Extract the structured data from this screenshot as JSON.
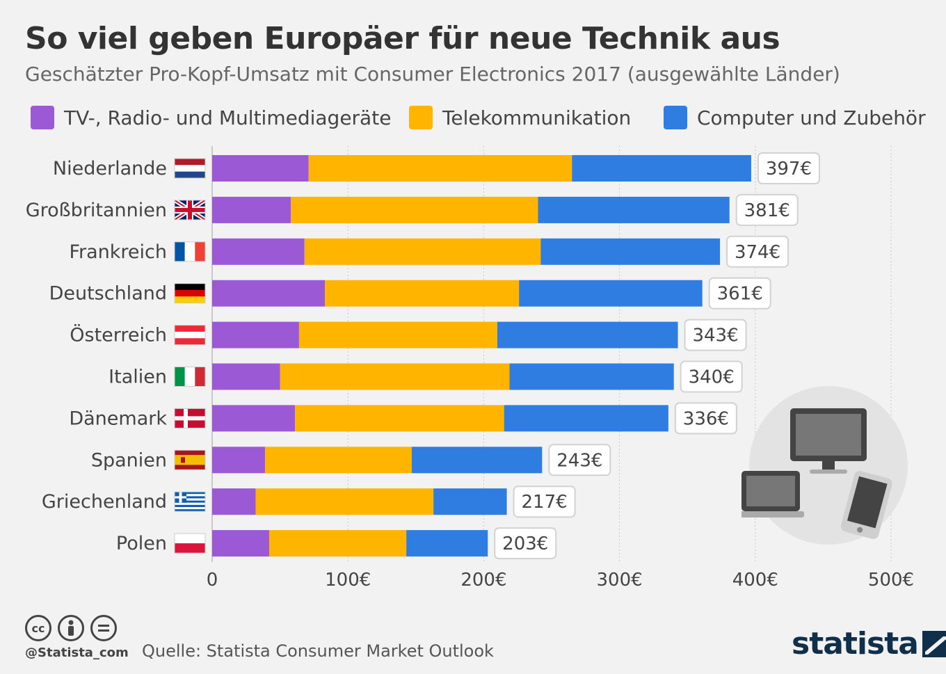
{
  "title": "So viel geben Europäer für neue Technik aus",
  "subtitle": "Geschätzter Pro-Kopf-Umsatz mit Consumer Electronics 2017 (ausgewählte Länder)",
  "footer": {
    "handle": "@Statista_com",
    "source": "Quelle: Statista Consumer Market Outlook",
    "brand": "statista"
  },
  "icons": {
    "cc": "cc",
    "by": "person",
    "nd": "equals"
  },
  "colors": {
    "tv": "#9b59d6",
    "telecom": "#ffb400",
    "computer": "#2f7de1",
    "background": "#f2f2f2"
  },
  "chart_data": {
    "type": "bar",
    "orientation": "horizontal",
    "stacked": true,
    "categories": [
      "Niederlande",
      "Großbritannien",
      "Frankreich",
      "Deutschland",
      "Österreich",
      "Italien",
      "Dänemark",
      "Spanien",
      "Griechenland",
      "Polen"
    ],
    "series": [
      {
        "name": "TV-, Radio- und Multimediageräte",
        "color": "#9b59d6",
        "values": [
          71,
          58,
          68,
          83,
          64,
          50,
          61,
          39,
          32,
          42
        ]
      },
      {
        "name": "Telekommunikation",
        "color": "#ffb400",
        "values": [
          194,
          182,
          174,
          143,
          146,
          169,
          154,
          108,
          131,
          101
        ]
      },
      {
        "name": "Computer und Zubehör",
        "color": "#2f7de1",
        "values": [
          132,
          141,
          132,
          135,
          133,
          121,
          121,
          96,
          54,
          60
        ]
      }
    ],
    "totals": [
      "397€",
      "381€",
      "374€",
      "361€",
      "343€",
      "340€",
      "336€",
      "243€",
      "217€",
      "203€"
    ],
    "xticks": [
      "0",
      "100€",
      "200€",
      "300€",
      "400€",
      "500€"
    ],
    "xlim": [
      0,
      500
    ],
    "grid": true,
    "legend_position": "top"
  }
}
